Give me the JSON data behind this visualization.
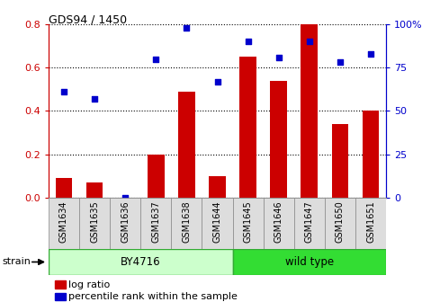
{
  "title": "GDS94 / 1450",
  "categories": [
    "GSM1634",
    "GSM1635",
    "GSM1636",
    "GSM1637",
    "GSM1638",
    "GSM1644",
    "GSM1645",
    "GSM1646",
    "GSM1647",
    "GSM1650",
    "GSM1651"
  ],
  "log_ratio": [
    0.09,
    0.07,
    0.0,
    0.2,
    0.49,
    0.1,
    0.65,
    0.54,
    0.8,
    0.34,
    0.4
  ],
  "percentile_rank": [
    61,
    57,
    0,
    80,
    98,
    67,
    90,
    81,
    90,
    78,
    83
  ],
  "bar_color": "#cc0000",
  "dot_color": "#0000cc",
  "ylim_left": [
    0,
    0.8
  ],
  "ylim_right": [
    0,
    100
  ],
  "yticks_left": [
    0.0,
    0.2,
    0.4,
    0.6,
    0.8
  ],
  "yticks_right": [
    0,
    25,
    50,
    75,
    100
  ],
  "ytick_labels_right": [
    "0",
    "25",
    "50",
    "75",
    "100%"
  ],
  "group1_label": "BY4716",
  "group2_label": "wild type",
  "group1_count": 6,
  "group2_count": 5,
  "strain_label": "strain",
  "legend_bar_label": "log ratio",
  "legend_dot_label": "percentile rank within the sample",
  "tick_color_left": "#cc0000",
  "tick_color_right": "#0000cc",
  "group1_color": "#ccffcc",
  "group2_color": "#33dd33",
  "group_border_color": "#33aa33",
  "xticklabel_bg": "#dddddd",
  "xticklabel_border": "#888888"
}
